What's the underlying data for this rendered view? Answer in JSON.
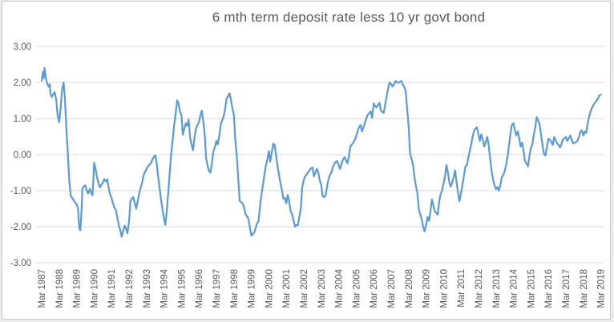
{
  "window": {
    "background_color": "#ececec",
    "chart_background": "#ffffff",
    "chart_border_color": "#c9c9c9"
  },
  "chart_data": {
    "type": "line",
    "title": "6 mth term deposit rate less 10 yr govt bond",
    "title_color": "#595959",
    "series_color": "#5B9BD5",
    "gridline_color": "#d9d9d9",
    "tick_color": "#595959",
    "legend": "none",
    "grid": "horizontal",
    "ylim": [
      -3.0,
      3.0
    ],
    "ytick_values": [
      3,
      2,
      1,
      0,
      -1,
      -2,
      -3
    ],
    "ytick_labels": [
      "3.00",
      "2.00",
      "1.00",
      "0.00",
      "-1.00",
      "-2.00",
      "-3.00"
    ],
    "xtick_labels": [
      "Mar 1987",
      "Mar 1988",
      "Mar 1989",
      "Mar 1990",
      "Mar 1991",
      "Mar 1992",
      "Mar 1993",
      "Mar 1994",
      "Mar 1995",
      "Mar 1996",
      "Mar 1997",
      "Mar 1998",
      "Mar 1999",
      "Mar 2000",
      "Mar 2001",
      "Mar 2002",
      "Mar 2003",
      "Mar 2004",
      "Mar 2005",
      "Mar 2006",
      "Mar 2007",
      "Mar 2008",
      "Mar 2009",
      "Mar 2010",
      "Mar 2011",
      "Mar 2012",
      "Mar 2013",
      "Mar 2014",
      "Mar 2015",
      "Mar 2016",
      "Mar 2017",
      "Mar 2018",
      "Mar 2019"
    ],
    "x_start_year": 1987.17,
    "x_years_per_tick": 1,
    "points": [
      [
        1987.17,
        2.05
      ],
      [
        1987.21,
        2.18
      ],
      [
        1987.25,
        2.3
      ],
      [
        1987.29,
        2.12
      ],
      [
        1987.33,
        2.4
      ],
      [
        1987.42,
        2.08
      ],
      [
        1987.5,
        1.95
      ],
      [
        1987.58,
        1.88
      ],
      [
        1987.63,
        1.95
      ],
      [
        1987.67,
        1.7
      ],
      [
        1987.75,
        1.6
      ],
      [
        1987.83,
        1.68
      ],
      [
        1987.92,
        1.73
      ],
      [
        1988.0,
        1.52
      ],
      [
        1988.08,
        1.1
      ],
      [
        1988.17,
        0.9
      ],
      [
        1988.25,
        1.25
      ],
      [
        1988.33,
        1.78
      ],
      [
        1988.42,
        2.0
      ],
      [
        1988.5,
        1.55
      ],
      [
        1988.58,
        0.75
      ],
      [
        1988.67,
        0.0
      ],
      [
        1988.75,
        -0.72
      ],
      [
        1988.83,
        -1.15
      ],
      [
        1988.92,
        -1.2
      ],
      [
        1989.0,
        -1.27
      ],
      [
        1989.08,
        -1.32
      ],
      [
        1989.17,
        -1.38
      ],
      [
        1989.25,
        -1.48
      ],
      [
        1989.29,
        -1.85
      ],
      [
        1989.33,
        -2.05
      ],
      [
        1989.38,
        -2.1
      ],
      [
        1989.42,
        -1.8
      ],
      [
        1989.46,
        -1.45
      ],
      [
        1989.5,
        -0.95
      ],
      [
        1989.58,
        -0.88
      ],
      [
        1989.67,
        -0.85
      ],
      [
        1989.75,
        -1.0
      ],
      [
        1989.83,
        -1.08
      ],
      [
        1989.92,
        -0.95
      ],
      [
        1990.0,
        -1.05
      ],
      [
        1990.08,
        -1.13
      ],
      [
        1990.13,
        -0.7
      ],
      [
        1990.17,
        -0.22
      ],
      [
        1990.25,
        -0.38
      ],
      [
        1990.33,
        -0.62
      ],
      [
        1990.42,
        -0.8
      ],
      [
        1990.5,
        -0.91
      ],
      [
        1990.58,
        -0.84
      ],
      [
        1990.67,
        -0.78
      ],
      [
        1990.75,
        -0.68
      ],
      [
        1990.83,
        -0.74
      ],
      [
        1990.92,
        -0.69
      ],
      [
        1991.0,
        -0.92
      ],
      [
        1991.08,
        -1.1
      ],
      [
        1991.17,
        -1.21
      ],
      [
        1991.25,
        -1.35
      ],
      [
        1991.33,
        -1.47
      ],
      [
        1991.42,
        -1.55
      ],
      [
        1991.5,
        -1.75
      ],
      [
        1991.58,
        -1.95
      ],
      [
        1991.67,
        -2.1
      ],
      [
        1991.75,
        -2.28
      ],
      [
        1991.83,
        -2.12
      ],
      [
        1991.92,
        -1.97
      ],
      [
        1992.0,
        -2.05
      ],
      [
        1992.08,
        -2.18
      ],
      [
        1992.17,
        -1.85
      ],
      [
        1992.25,
        -1.3
      ],
      [
        1992.33,
        -1.22
      ],
      [
        1992.42,
        -1.18
      ],
      [
        1992.5,
        -1.35
      ],
      [
        1992.58,
        -1.5
      ],
      [
        1992.67,
        -1.28
      ],
      [
        1992.75,
        -1.08
      ],
      [
        1992.83,
        -0.92
      ],
      [
        1992.92,
        -0.78
      ],
      [
        1993.0,
        -0.58
      ],
      [
        1993.08,
        -0.48
      ],
      [
        1993.17,
        -0.4
      ],
      [
        1993.25,
        -0.33
      ],
      [
        1993.33,
        -0.28
      ],
      [
        1993.42,
        -0.24
      ],
      [
        1993.5,
        -0.14
      ],
      [
        1993.58,
        -0.07
      ],
      [
        1993.67,
        -0.02
      ],
      [
        1993.75,
        -0.22
      ],
      [
        1993.83,
        -0.6
      ],
      [
        1993.92,
        -0.95
      ],
      [
        1994.0,
        -1.24
      ],
      [
        1994.08,
        -1.52
      ],
      [
        1994.17,
        -1.78
      ],
      [
        1994.25,
        -1.95
      ],
      [
        1994.33,
        -1.55
      ],
      [
        1994.42,
        -1.0
      ],
      [
        1994.5,
        -0.48
      ],
      [
        1994.58,
        0.0
      ],
      [
        1994.67,
        0.42
      ],
      [
        1994.75,
        0.82
      ],
      [
        1994.83,
        1.12
      ],
      [
        1994.92,
        1.5
      ],
      [
        1995.0,
        1.42
      ],
      [
        1995.08,
        1.2
      ],
      [
        1995.17,
        1.09
      ],
      [
        1995.25,
        0.55
      ],
      [
        1995.33,
        0.72
      ],
      [
        1995.42,
        0.87
      ],
      [
        1995.5,
        0.8
      ],
      [
        1995.58,
        0.97
      ],
      [
        1995.67,
        0.45
      ],
      [
        1995.75,
        0.28
      ],
      [
        1995.83,
        0.12
      ],
      [
        1995.92,
        0.5
      ],
      [
        1996.0,
        0.72
      ],
      [
        1996.08,
        0.82
      ],
      [
        1996.17,
        0.9
      ],
      [
        1996.25,
        1.08
      ],
      [
        1996.33,
        1.22
      ],
      [
        1996.42,
        0.9
      ],
      [
        1996.5,
        0.56
      ],
      [
        1996.58,
        -0.1
      ],
      [
        1996.67,
        -0.32
      ],
      [
        1996.75,
        -0.45
      ],
      [
        1996.83,
        -0.5
      ],
      [
        1996.92,
        -0.18
      ],
      [
        1997.0,
        0.1
      ],
      [
        1997.08,
        0.2
      ],
      [
        1997.17,
        0.38
      ],
      [
        1997.25,
        0.28
      ],
      [
        1997.33,
        0.52
      ],
      [
        1997.42,
        0.85
      ],
      [
        1997.5,
        0.95
      ],
      [
        1997.58,
        1.05
      ],
      [
        1997.67,
        1.28
      ],
      [
        1997.75,
        1.55
      ],
      [
        1997.83,
        1.62
      ],
      [
        1997.92,
        1.7
      ],
      [
        1998.0,
        1.52
      ],
      [
        1998.08,
        1.3
      ],
      [
        1998.17,
        1.1
      ],
      [
        1998.25,
        0.4
      ],
      [
        1998.33,
        0.0
      ],
      [
        1998.42,
        -0.7
      ],
      [
        1998.5,
        -1.28
      ],
      [
        1998.58,
        -1.32
      ],
      [
        1998.67,
        -1.36
      ],
      [
        1998.75,
        -1.45
      ],
      [
        1998.83,
        -1.65
      ],
      [
        1998.92,
        -1.72
      ],
      [
        1999.0,
        -1.78
      ],
      [
        1999.08,
        -2.0
      ],
      [
        1999.17,
        -2.25
      ],
      [
        1999.25,
        -2.2
      ],
      [
        1999.33,
        -2.17
      ],
      [
        1999.42,
        -2.02
      ],
      [
        1999.5,
        -1.9
      ],
      [
        1999.58,
        -1.85
      ],
      [
        1999.67,
        -1.42
      ],
      [
        1999.75,
        -1.1
      ],
      [
        1999.83,
        -0.85
      ],
      [
        1999.92,
        -0.56
      ],
      [
        2000.0,
        -0.3
      ],
      [
        2000.08,
        -0.15
      ],
      [
        2000.17,
        0.1
      ],
      [
        2000.25,
        -0.2
      ],
      [
        2000.33,
        0.05
      ],
      [
        2000.42,
        0.3
      ],
      [
        2000.5,
        0.27
      ],
      [
        2000.58,
        0.0
      ],
      [
        2000.67,
        -0.33
      ],
      [
        2000.75,
        -0.55
      ],
      [
        2000.83,
        -0.78
      ],
      [
        2000.92,
        -1.0
      ],
      [
        2001.0,
        -1.22
      ],
      [
        2001.08,
        -1.2
      ],
      [
        2001.17,
        -1.35
      ],
      [
        2001.25,
        -1.12
      ],
      [
        2001.33,
        -1.3
      ],
      [
        2001.42,
        -1.58
      ],
      [
        2001.5,
        -1.65
      ],
      [
        2001.58,
        -1.82
      ],
      [
        2001.67,
        -2.0
      ],
      [
        2001.75,
        -1.95
      ],
      [
        2001.83,
        -1.96
      ],
      [
        2001.92,
        -1.7
      ],
      [
        2002.0,
        -1.5
      ],
      [
        2002.08,
        -0.91
      ],
      [
        2002.17,
        -0.7
      ],
      [
        2002.25,
        -0.6
      ],
      [
        2002.33,
        -0.56
      ],
      [
        2002.42,
        -0.48
      ],
      [
        2002.5,
        -0.44
      ],
      [
        2002.58,
        -0.38
      ],
      [
        2002.67,
        -0.36
      ],
      [
        2002.75,
        -0.6
      ],
      [
        2002.83,
        -0.5
      ],
      [
        2002.92,
        -0.4
      ],
      [
        2003.0,
        -0.5
      ],
      [
        2003.08,
        -0.7
      ],
      [
        2003.17,
        -0.85
      ],
      [
        2003.25,
        -1.15
      ],
      [
        2003.33,
        -1.18
      ],
      [
        2003.42,
        -1.12
      ],
      [
        2003.5,
        -0.9
      ],
      [
        2003.58,
        -0.7
      ],
      [
        2003.67,
        -0.56
      ],
      [
        2003.75,
        -0.5
      ],
      [
        2003.83,
        -0.35
      ],
      [
        2003.92,
        -0.25
      ],
      [
        2004.0,
        -0.2
      ],
      [
        2004.08,
        -0.18
      ],
      [
        2004.17,
        -0.3
      ],
      [
        2004.25,
        -0.4
      ],
      [
        2004.33,
        -0.25
      ],
      [
        2004.42,
        -0.13
      ],
      [
        2004.5,
        -0.07
      ],
      [
        2004.58,
        -0.15
      ],
      [
        2004.67,
        -0.24
      ],
      [
        2004.75,
        -0.05
      ],
      [
        2004.83,
        0.22
      ],
      [
        2004.92,
        0.28
      ],
      [
        2005.0,
        0.33
      ],
      [
        2005.08,
        0.4
      ],
      [
        2005.17,
        0.5
      ],
      [
        2005.25,
        0.65
      ],
      [
        2005.33,
        0.76
      ],
      [
        2005.42,
        0.82
      ],
      [
        2005.5,
        0.64
      ],
      [
        2005.58,
        0.75
      ],
      [
        2005.67,
        0.89
      ],
      [
        2005.75,
        1.0
      ],
      [
        2005.83,
        1.11
      ],
      [
        2005.92,
        1.15
      ],
      [
        2006.0,
        1.2
      ],
      [
        2006.08,
        1.02
      ],
      [
        2006.17,
        1.42
      ],
      [
        2006.25,
        1.35
      ],
      [
        2006.33,
        1.31
      ],
      [
        2006.42,
        1.38
      ],
      [
        2006.5,
        1.44
      ],
      [
        2006.58,
        1.22
      ],
      [
        2006.67,
        1.18
      ],
      [
        2006.75,
        1.16
      ],
      [
        2006.83,
        1.4
      ],
      [
        2006.92,
        1.64
      ],
      [
        2007.0,
        1.85
      ],
      [
        2007.08,
        2.0
      ],
      [
        2007.17,
        1.95
      ],
      [
        2007.25,
        1.89
      ],
      [
        2007.33,
        1.95
      ],
      [
        2007.42,
        2.04
      ],
      [
        2007.5,
        2.0
      ],
      [
        2007.58,
        2.0
      ],
      [
        2007.67,
        2.02
      ],
      [
        2007.75,
        2.04
      ],
      [
        2007.83,
        1.95
      ],
      [
        2007.92,
        1.87
      ],
      [
        2008.0,
        1.76
      ],
      [
        2008.08,
        1.3
      ],
      [
        2008.17,
        0.78
      ],
      [
        2008.25,
        0.04
      ],
      [
        2008.33,
        -0.11
      ],
      [
        2008.42,
        -0.29
      ],
      [
        2008.5,
        -0.62
      ],
      [
        2008.58,
        -0.85
      ],
      [
        2008.67,
        -1.07
      ],
      [
        2008.75,
        -1.51
      ],
      [
        2008.83,
        -1.65
      ],
      [
        2008.92,
        -1.8
      ],
      [
        2009.0,
        -2.0
      ],
      [
        2009.08,
        -2.13
      ],
      [
        2009.17,
        -1.95
      ],
      [
        2009.25,
        -1.73
      ],
      [
        2009.33,
        -1.84
      ],
      [
        2009.42,
        -1.58
      ],
      [
        2009.5,
        -1.24
      ],
      [
        2009.58,
        -1.4
      ],
      [
        2009.67,
        -1.58
      ],
      [
        2009.75,
        -1.62
      ],
      [
        2009.83,
        -1.67
      ],
      [
        2009.92,
        -1.29
      ],
      [
        2010.0,
        -1.1
      ],
      [
        2010.08,
        -1.0
      ],
      [
        2010.17,
        -0.8
      ],
      [
        2010.25,
        -0.62
      ],
      [
        2010.33,
        -0.29
      ],
      [
        2010.42,
        -0.5
      ],
      [
        2010.5,
        -0.78
      ],
      [
        2010.58,
        -0.89
      ],
      [
        2010.67,
        -0.75
      ],
      [
        2010.75,
        -0.62
      ],
      [
        2010.83,
        -0.44
      ],
      [
        2010.92,
        -0.8
      ],
      [
        2011.0,
        -1.07
      ],
      [
        2011.08,
        -1.29
      ],
      [
        2011.17,
        -1.05
      ],
      [
        2011.25,
        -0.84
      ],
      [
        2011.33,
        -0.6
      ],
      [
        2011.42,
        -0.33
      ],
      [
        2011.5,
        -0.29
      ],
      [
        2011.58,
        -0.1
      ],
      [
        2011.67,
        0.11
      ],
      [
        2011.75,
        0.27
      ],
      [
        2011.83,
        0.5
      ],
      [
        2011.92,
        0.67
      ],
      [
        2012.0,
        0.72
      ],
      [
        2012.08,
        0.76
      ],
      [
        2012.17,
        0.55
      ],
      [
        2012.25,
        0.38
      ],
      [
        2012.33,
        0.56
      ],
      [
        2012.42,
        0.4
      ],
      [
        2012.5,
        0.22
      ],
      [
        2012.58,
        0.35
      ],
      [
        2012.67,
        0.49
      ],
      [
        2012.75,
        0.27
      ],
      [
        2012.83,
        -0.1
      ],
      [
        2012.92,
        -0.47
      ],
      [
        2013.0,
        -0.69
      ],
      [
        2013.08,
        -0.85
      ],
      [
        2013.17,
        -0.96
      ],
      [
        2013.25,
        -0.9
      ],
      [
        2013.33,
        -1.0
      ],
      [
        2013.42,
        -0.84
      ],
      [
        2013.5,
        -0.62
      ],
      [
        2013.58,
        -0.58
      ],
      [
        2013.67,
        -0.45
      ],
      [
        2013.75,
        -0.29
      ],
      [
        2013.83,
        -0.05
      ],
      [
        2013.92,
        0.27
      ],
      [
        2014.0,
        0.6
      ],
      [
        2014.08,
        0.82
      ],
      [
        2014.17,
        0.87
      ],
      [
        2014.25,
        0.7
      ],
      [
        2014.33,
        0.53
      ],
      [
        2014.42,
        0.64
      ],
      [
        2014.5,
        0.45
      ],
      [
        2014.58,
        0.22
      ],
      [
        2014.67,
        0.33
      ],
      [
        2014.75,
        0.1
      ],
      [
        2014.83,
        -0.18
      ],
      [
        2014.92,
        -0.25
      ],
      [
        2015.0,
        -0.33
      ],
      [
        2015.08,
        -0.05
      ],
      [
        2015.17,
        0.2
      ],
      [
        2015.25,
        0.27
      ],
      [
        2015.33,
        0.55
      ],
      [
        2015.42,
        0.78
      ],
      [
        2015.5,
        1.04
      ],
      [
        2015.58,
        0.95
      ],
      [
        2015.67,
        0.82
      ],
      [
        2015.75,
        0.55
      ],
      [
        2015.83,
        0.27
      ],
      [
        2015.92,
        0.0
      ],
      [
        2016.0,
        -0.02
      ],
      [
        2016.08,
        0.2
      ],
      [
        2016.17,
        0.44
      ],
      [
        2016.25,
        0.42
      ],
      [
        2016.33,
        0.35
      ],
      [
        2016.42,
        0.27
      ],
      [
        2016.5,
        0.49
      ],
      [
        2016.58,
        0.4
      ],
      [
        2016.67,
        0.31
      ],
      [
        2016.75,
        0.27
      ],
      [
        2016.83,
        0.2
      ],
      [
        2016.92,
        0.3
      ],
      [
        2017.0,
        0.42
      ],
      [
        2017.08,
        0.45
      ],
      [
        2017.17,
        0.49
      ],
      [
        2017.25,
        0.38
      ],
      [
        2017.33,
        0.45
      ],
      [
        2017.42,
        0.53
      ],
      [
        2017.5,
        0.42
      ],
      [
        2017.58,
        0.31
      ],
      [
        2017.67,
        0.33
      ],
      [
        2017.75,
        0.35
      ],
      [
        2017.83,
        0.38
      ],
      [
        2017.92,
        0.5
      ],
      [
        2018.0,
        0.64
      ],
      [
        2018.08,
        0.67
      ],
      [
        2018.17,
        0.53
      ],
      [
        2018.25,
        0.64
      ],
      [
        2018.33,
        0.6
      ],
      [
        2018.42,
        0.89
      ],
      [
        2018.5,
        1.05
      ],
      [
        2018.58,
        1.2
      ],
      [
        2018.67,
        1.3
      ],
      [
        2018.75,
        1.38
      ],
      [
        2018.83,
        1.44
      ],
      [
        2018.92,
        1.49
      ],
      [
        2019.0,
        1.55
      ],
      [
        2019.08,
        1.64
      ],
      [
        2019.17,
        1.67
      ]
    ]
  }
}
